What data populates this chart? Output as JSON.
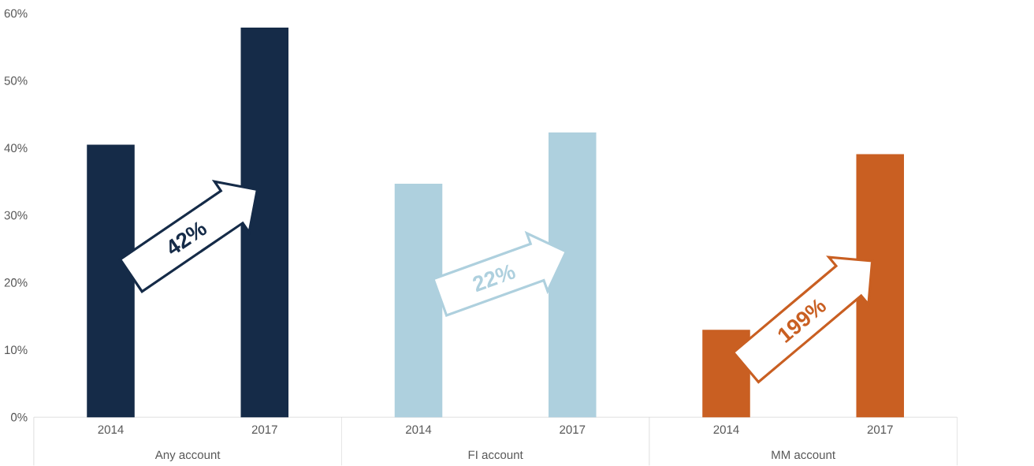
{
  "chart_data": {
    "type": "bar",
    "categories": [
      "2014",
      "2017",
      "2014",
      "2017",
      "2014",
      "2017"
    ],
    "values": [
      40.5,
      57.9,
      34.7,
      42.3,
      13.0,
      39.1
    ],
    "colors": [
      "#152b48",
      "#152b48",
      "#aed0de",
      "#aed0de",
      "#c95f22",
      "#c95f22"
    ],
    "ylim": [
      0,
      60
    ],
    "yticks": [
      {
        "value": 0,
        "label": "0%"
      },
      {
        "value": 10,
        "label": "10%"
      },
      {
        "value": 20,
        "label": "20%"
      },
      {
        "value": 30,
        "label": "30%"
      },
      {
        "value": 40,
        "label": "40%"
      },
      {
        "value": 50,
        "label": "50%"
      },
      {
        "value": 60,
        "label": "60%"
      }
    ],
    "annotations": [
      "42%",
      "22%",
      "199%",
      "Any account",
      "FI account",
      "MM account"
    ]
  }
}
